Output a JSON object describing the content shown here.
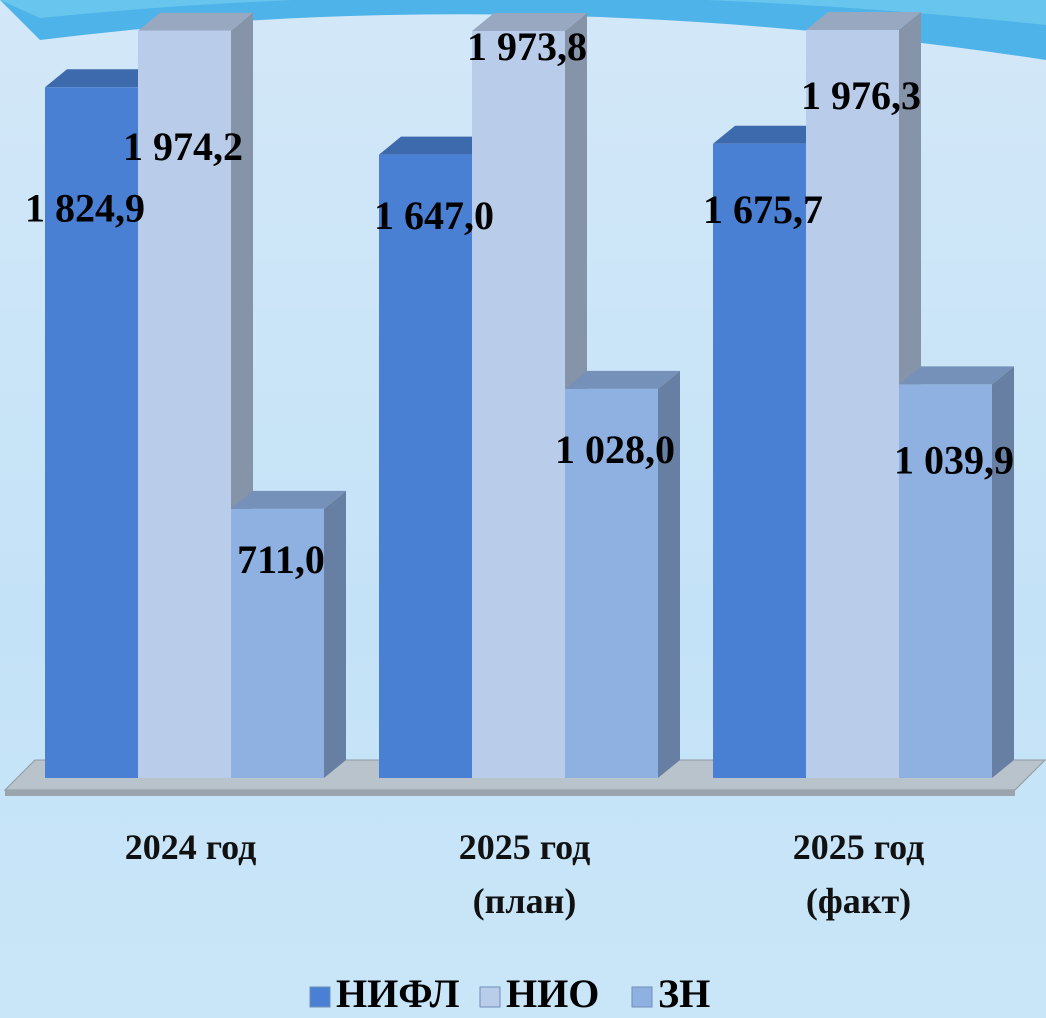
{
  "chart_data": {
    "type": "bar3d",
    "categories": [
      "2024 год",
      "2025 год (план)",
      "2025 год (факт)"
    ],
    "series": [
      {
        "name": "НИФЛ",
        "color": "#4a80d3",
        "values": [
          1824.9,
          1647.0,
          1675.7
        ],
        "value_labels": [
          "1 824,9",
          "1 647,0",
          "1 675,7"
        ]
      },
      {
        "name": "НИО",
        "color": "#b9cdea",
        "values": [
          1974.2,
          1973.8,
          1976.3
        ],
        "value_labels": [
          "1 974,2",
          "1 973,8",
          "1 976,3"
        ]
      },
      {
        "name": "ЗН",
        "color": "#8fb1e1",
        "values": [
          711.0,
          1028.0,
          1039.9
        ],
        "value_labels": [
          "711,0",
          "1 028,0",
          "1 039,9"
        ]
      }
    ]
  }
}
